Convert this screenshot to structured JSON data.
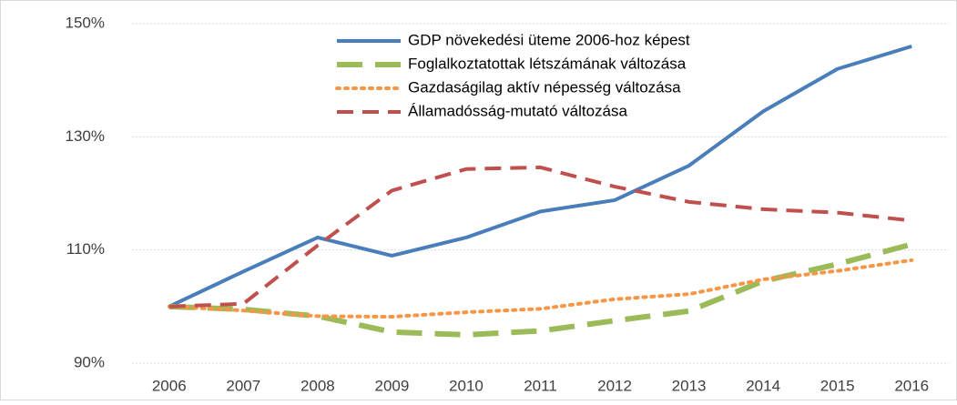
{
  "chart_data": {
    "type": "line",
    "categories": [
      "2006",
      "2007",
      "2008",
      "2009",
      "2010",
      "2011",
      "2012",
      "2013",
      "2014",
      "2015",
      "2016"
    ],
    "series": [
      {
        "name": "GDP növekedési üteme 2006-hoz képest",
        "color": "#4a7ebb",
        "style": "solid",
        "values": [
          100,
          106.2,
          112.2,
          109,
          112.2,
          116.8,
          118.8,
          124.9,
          134.5,
          142,
          146
        ]
      },
      {
        "name": "Foglalkoztatottak létszámának változása",
        "color": "#9bbb59",
        "style": "long-dash",
        "values": [
          100,
          99.5,
          98.3,
          95.5,
          95,
          95.7,
          97.5,
          99.2,
          104.5,
          107.5,
          111
        ]
      },
      {
        "name": "Gazdaságilag aktív népesség változása",
        "color": "#f79646",
        "style": "dotted",
        "values": [
          100,
          99.3,
          98.3,
          98.2,
          99,
          99.6,
          101.3,
          102.2,
          104.8,
          106.3,
          108.2
        ]
      },
      {
        "name": "Államadósság-mutató változása",
        "color": "#c0504d",
        "style": "dashed",
        "values": [
          100,
          100.5,
          110.8,
          120.5,
          124.3,
          124.6,
          121.2,
          118.5,
          117.2,
          116.6,
          115.2
        ]
      }
    ],
    "ylim": [
      90,
      150
    ],
    "yticks": [
      {
        "value": 90,
        "label": "90%"
      },
      {
        "value": 110,
        "label": "110%"
      },
      {
        "value": 130,
        "label": "130%"
      },
      {
        "value": 150,
        "label": "150%"
      }
    ],
    "grid": true,
    "legend": "top"
  }
}
